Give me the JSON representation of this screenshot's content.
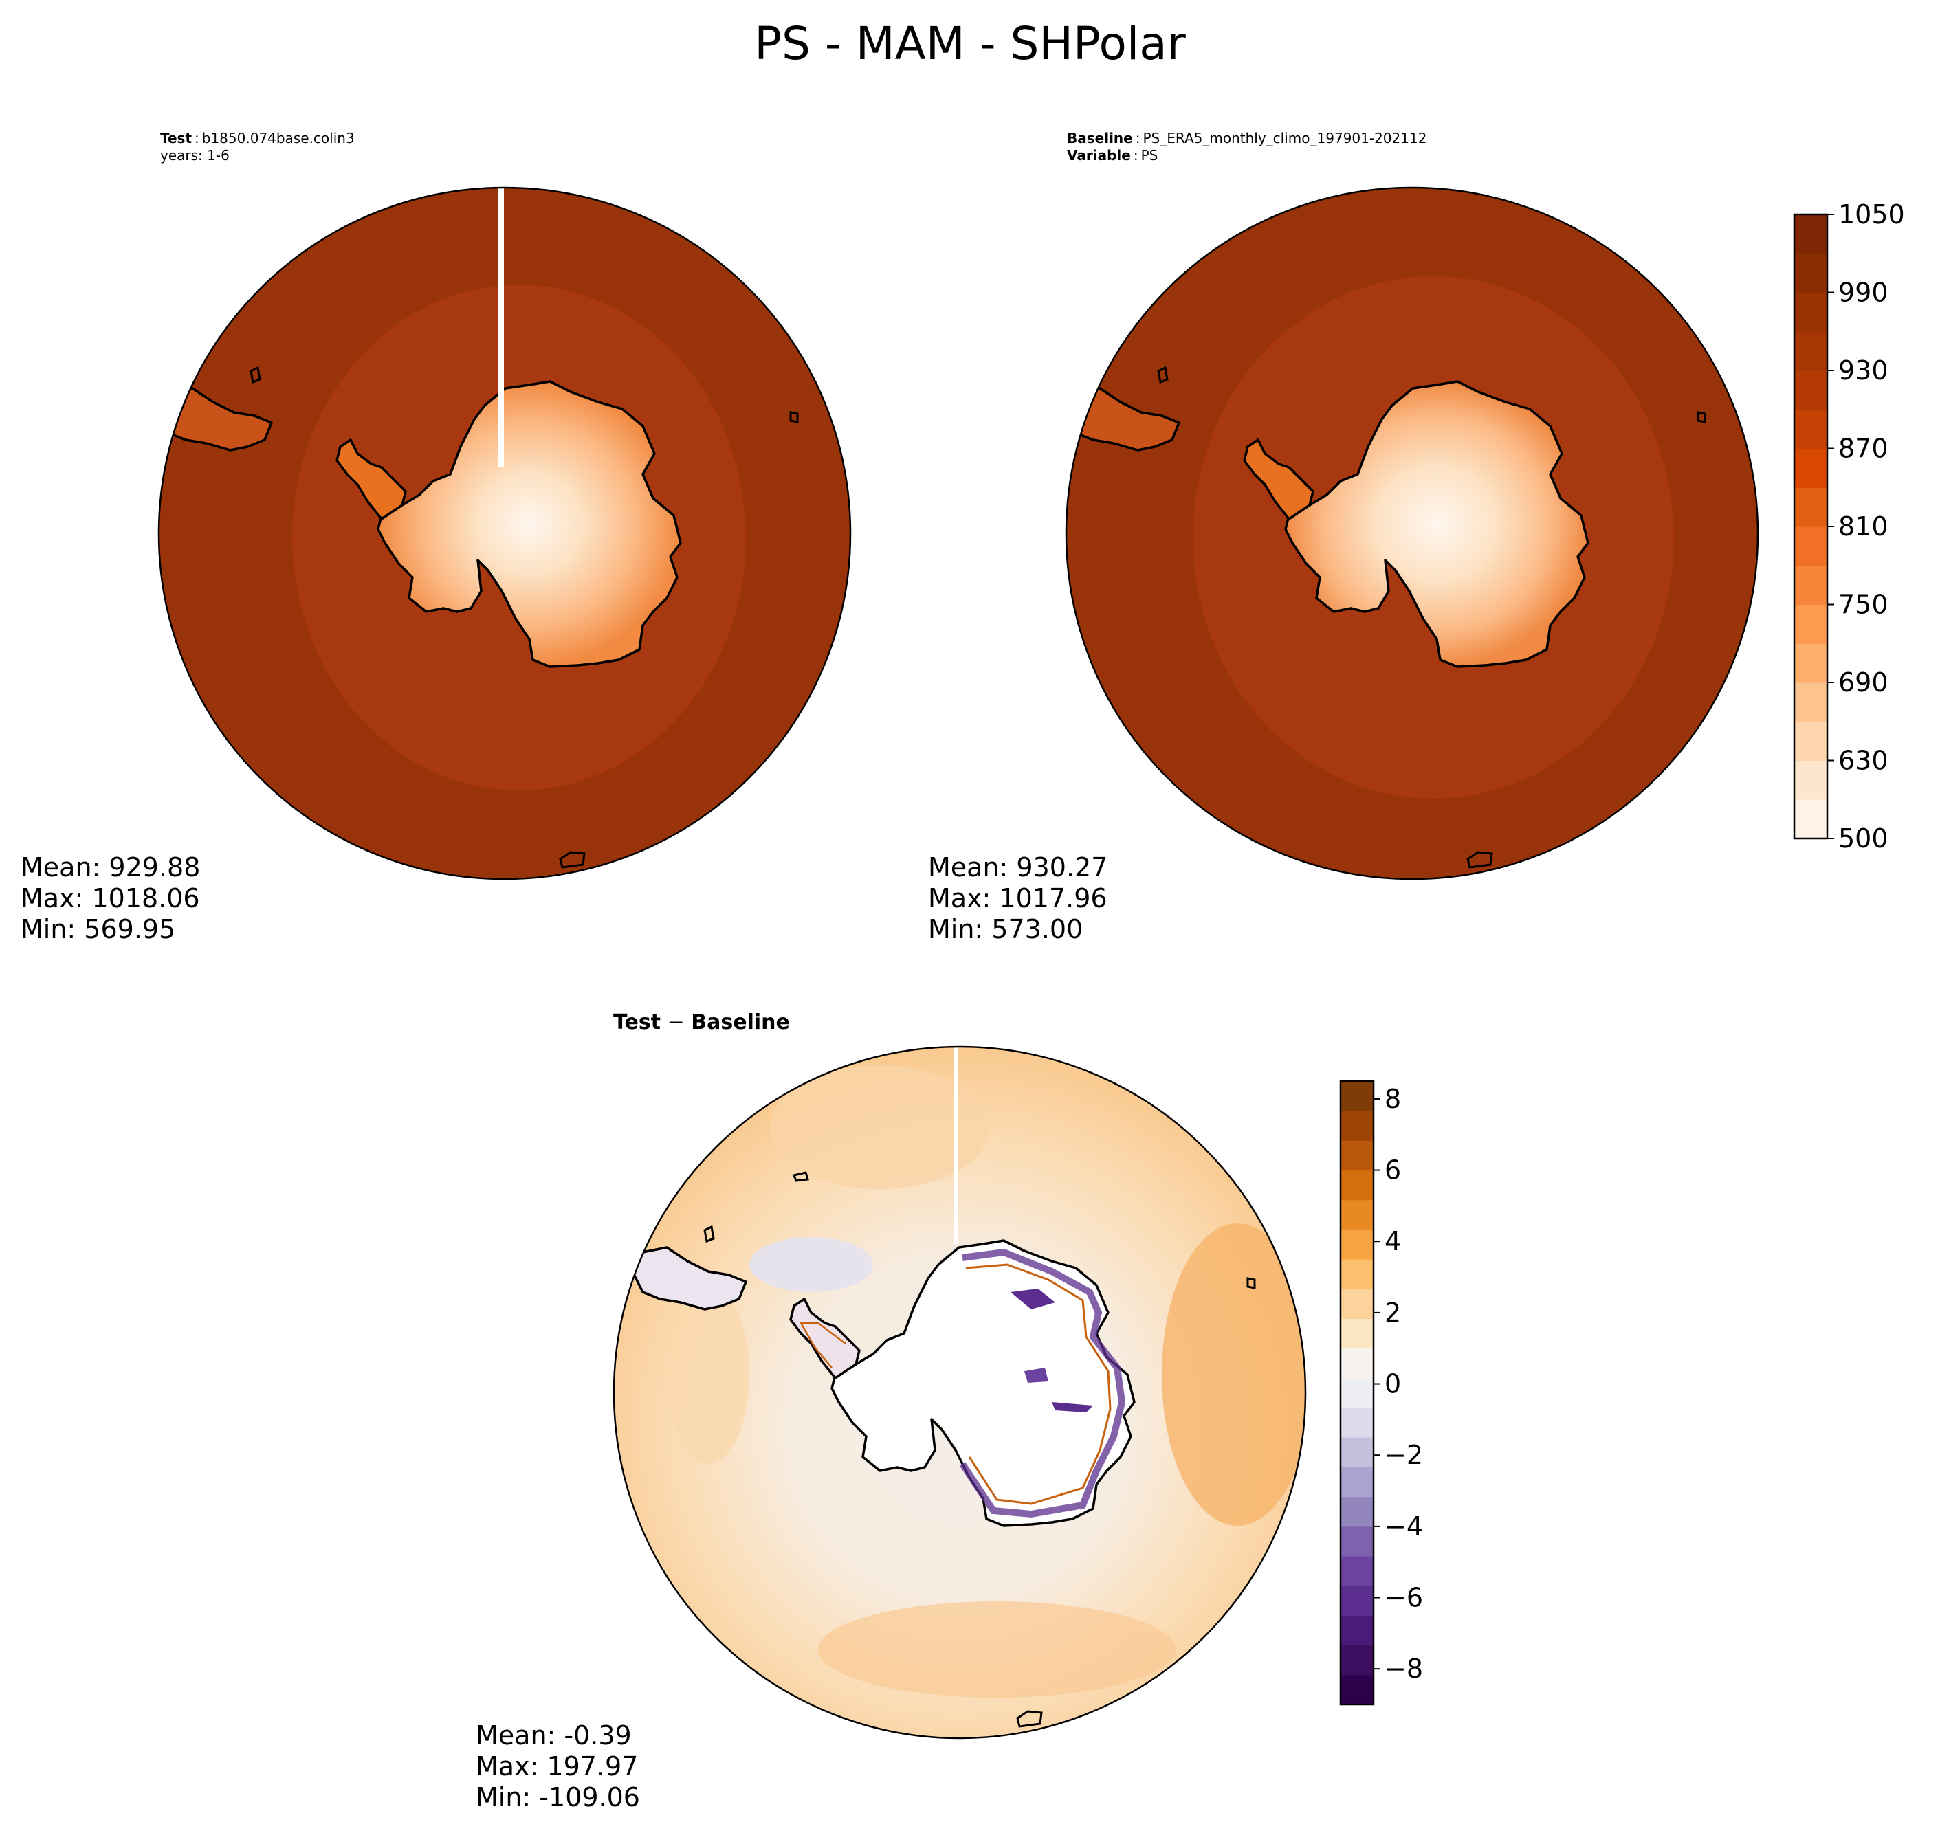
{
  "figure": {
    "title": "PS - MAM - SHPolar"
  },
  "test_panel": {
    "caption_label": "Test",
    "caption_sep": ":",
    "caption_value": "b1850.074base.colin3",
    "caption_line2": "years: 1-6",
    "stats": {
      "mean": "Mean: 929.88",
      "max": "Max: 1018.06",
      "min": "Min: 569.95"
    }
  },
  "baseline_panel": {
    "caption_label": "Baseline",
    "caption_sep": ":",
    "caption_value": "PS_ERA5_monthly_climo_197901-202112",
    "caption2_label": "Variable",
    "caption2_sep": ":",
    "caption2_value": "PS",
    "stats": {
      "mean": "Mean: 930.27",
      "max": "Max: 1017.96",
      "min": "Min: 573.00"
    }
  },
  "diff_panel": {
    "title_a": "Test",
    "title_op": " − ",
    "title_b": "Baseline",
    "stats": {
      "mean": "Mean: -0.39",
      "max": "Max: 197.97",
      "min": "Min: -109.06"
    }
  },
  "colorbar_main": {
    "ticks": [
      "500",
      "630",
      "690",
      "750",
      "810",
      "870",
      "930",
      "990",
      "1050"
    ],
    "colors_low_to_high": [
      "#fff3e8",
      "#fee6ce",
      "#fdd6ad",
      "#fdc48f",
      "#fdae6b",
      "#fd9a4f",
      "#f8853a",
      "#f07126",
      "#e35f13",
      "#d94801",
      "#c44103",
      "#b33a03",
      "#a63603",
      "#9a3203",
      "#8c2d04",
      "#7f2704"
    ],
    "colormap": "Oranges"
  },
  "colorbar_diff": {
    "ticks": [
      "8",
      "6",
      "4",
      "2",
      "0",
      "−2",
      "−4",
      "−6",
      "−8"
    ],
    "colors_low_to_high": [
      "#2d004b",
      "#3d0d60",
      "#4b1b7a",
      "#5a2d8e",
      "#6b44a0",
      "#7e62ad",
      "#9286bd",
      "#a9a3cd",
      "#c3c0dd",
      "#dbdbeb",
      "#eeeef5",
      "#f8f3ee",
      "#fde6c6",
      "#fed39b",
      "#fdbe6e",
      "#f7a542",
      "#e88a21",
      "#d46f0e",
      "#b95808",
      "#9e4506",
      "#7f3b08"
    ],
    "colormap": "PuOr_r",
    "range": [
      -9,
      8.5
    ]
  },
  "colors": {
    "ocean_outer": "#99330a",
    "ocean_inner": "#a73810",
    "land_outline": "#000000",
    "diff_ocean": "#fbe6cc"
  }
}
